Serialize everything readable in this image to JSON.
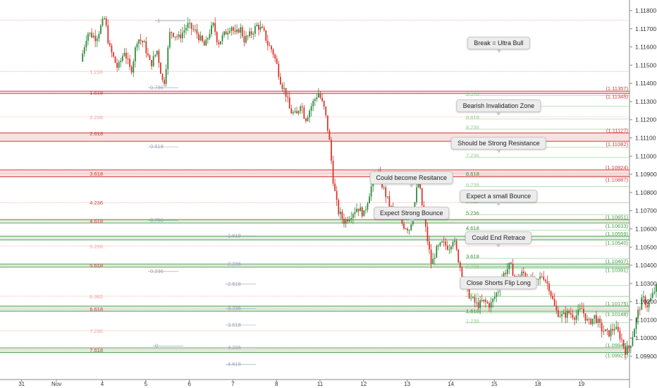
{
  "chart_data": {
    "type": "candlestick",
    "ylim": [
      1.0985,
      1.1188
    ],
    "y_ticks": [
      "1.11800",
      "1.11700",
      "1.11600",
      "1.11500",
      "1.11400",
      "1.11300",
      "1.11200",
      "1.11100",
      "1.11000",
      "1.10900",
      "1.10800",
      "1.10700",
      "1.10600",
      "1.10500",
      "1.10400",
      "1.10300",
      "1.10200",
      "1.10100",
      "1.10000",
      "1.09900"
    ],
    "x_ticks": [
      "31",
      "Nov",
      "4",
      "5",
      "6",
      "7",
      "8",
      "11",
      "12",
      "13",
      "14",
      "15",
      "18",
      "19"
    ],
    "key_levels": [
      {
        "left": "1.11357",
        "right": "1.11345",
        "price": 1.11351,
        "zone": "resistance"
      },
      {
        "left": "1.11127",
        "right": "1.11082",
        "price": 1.11105,
        "zone": "resistance"
      },
      {
        "left": "1.10924",
        "right": "1.10887",
        "price": 1.10905,
        "zone": "resistance"
      },
      {
        "left": "1.10651",
        "right": "1.10633",
        "price": 1.10642,
        "zone": "support"
      },
      {
        "left": "1.10559",
        "right": "1.10540",
        "price": 1.1055,
        "zone": "support"
      },
      {
        "left": "1.10407",
        "right": "1.10391",
        "price": 1.10399,
        "zone": "support"
      },
      {
        "left": "1.10175",
        "right": "1.10148",
        "price": 1.10161,
        "zone": "support"
      },
      {
        "left": "1.09946",
        "right": "1.09921",
        "price": 1.09934,
        "zone": "support"
      }
    ],
    "fib_down": [
      {
        "label": "0",
        "price": 1.11748
      },
      {
        "label": "1.236",
        "price": 1.11465
      },
      {
        "label": "1.618",
        "price": 1.1135
      },
      {
        "label": "2.236",
        "price": 1.11215
      },
      {
        "label": "2.618",
        "price": 1.11125
      },
      {
        "label": "3.618",
        "price": 1.10905
      },
      {
        "label": "4.236",
        "price": 1.10745
      },
      {
        "label": "4.618",
        "price": 1.10645
      },
      {
        "label": "5.236",
        "price": 1.10505
      },
      {
        "label": "5.618",
        "price": 1.104
      },
      {
        "label": "6.382",
        "price": 1.1023
      },
      {
        "label": "6.618",
        "price": 1.1016
      },
      {
        "label": "7.236",
        "price": 1.1004
      },
      {
        "label": "7.618",
        "price": 1.09935
      }
    ],
    "fib_grey": [
      {
        "label": "1",
        "price": 1.11748
      },
      {
        "label": "0.786",
        "price": 1.1138
      },
      {
        "label": "0.618",
        "price": 1.11055
      },
      {
        "label": "0.786",
        "price": 1.1065
      },
      {
        "label": "1.618",
        "price": 1.10565
      },
      {
        "label": "2.236",
        "price": 1.1041
      },
      {
        "label": "0.236",
        "price": 1.1037
      },
      {
        "label": "2.618",
        "price": 1.103
      },
      {
        "label": "3.236",
        "price": 1.10165
      },
      {
        "label": "3.618",
        "price": 1.10075
      },
      {
        "label": "0",
        "price": 1.0996
      },
      {
        "label": "4.236",
        "price": 1.0995
      },
      {
        "label": "4.618",
        "price": 1.0986
      }
    ],
    "fib_up": [
      {
        "label": "9.618",
        "price": 1.11345
      },
      {
        "label": "9.236",
        "price": 1.11285
      },
      {
        "label": "8.618",
        "price": 1.11215
      },
      {
        "label": "8.236",
        "price": 1.1116
      },
      {
        "label": "7.618",
        "price": 1.1106
      },
      {
        "label": "7.236",
        "price": 1.11005
      },
      {
        "label": "6.618",
        "price": 1.10905
      },
      {
        "label": "6.236",
        "price": 1.10845
      },
      {
        "label": "5.618",
        "price": 1.10755
      },
      {
        "label": "5.236",
        "price": 1.1069
      },
      {
        "label": "4.618",
        "price": 1.10605
      },
      {
        "label": "4.236",
        "price": 1.1055
      },
      {
        "label": "3.618",
        "price": 1.1045
      },
      {
        "label": "3.236",
        "price": 1.10395
      },
      {
        "label": "2.618",
        "price": 1.103
      },
      {
        "label": "2.236",
        "price": 1.1024
      },
      {
        "label": "1.618",
        "price": 1.1015
      },
      {
        "label": "1.236",
        "price": 1.10095
      }
    ],
    "callouts": [
      {
        "text": "Break = Ultra Bull",
        "price": 1.1156,
        "day": 13.1
      },
      {
        "text": "Bearish Invalidation Zone",
        "price": 1.11213,
        "day": 13.1
      },
      {
        "text": "Should be Strong Resistance",
        "price": 1.11008,
        "day": 13.1
      },
      {
        "text": "Could become Resitance",
        "price": 1.10818,
        "day": 11.1
      },
      {
        "text": "Expect a small Bounce",
        "price": 1.10718,
        "day": 13.1
      },
      {
        "text": "Expect Strong Bounce",
        "price": 1.10627,
        "day": 11.1
      },
      {
        "text": "Could End Retrace",
        "price": 1.1049,
        "day": 13.1
      },
      {
        "text": "Close Shorts Flip Long",
        "price": 1.1024,
        "day": 13.1
      }
    ],
    "path": [
      [
        -0.45,
        1.1152
      ],
      [
        -0.3,
        1.1168
      ],
      [
        -0.1,
        1.1165
      ],
      [
        0.1,
        1.1176
      ],
      [
        0.2,
        1.116
      ],
      [
        0.4,
        1.1148
      ],
      [
        0.55,
        1.1158
      ],
      [
        0.7,
        1.1146
      ],
      [
        0.85,
        1.1165
      ],
      [
        1.0,
        1.1162
      ],
      [
        1.15,
        1.115
      ],
      [
        1.3,
        1.1158
      ],
      [
        1.45,
        1.1138
      ],
      [
        1.6,
        1.1169
      ],
      [
        1.8,
        1.1165
      ],
      [
        2.0,
        1.1172
      ],
      [
        2.2,
        1.1168
      ],
      [
        2.4,
        1.116
      ],
      [
        2.5,
        1.1168
      ],
      [
        2.6,
        1.1172
      ],
      [
        2.7,
        1.1162
      ],
      [
        2.85,
        1.1167
      ],
      [
        3.0,
        1.1172
      ],
      [
        3.1,
        1.1166
      ],
      [
        3.2,
        1.1171
      ],
      [
        3.3,
        1.1164
      ],
      [
        3.45,
        1.1167
      ],
      [
        3.6,
        1.1172
      ],
      [
        3.75,
        1.1168
      ],
      [
        3.85,
        1.1161
      ],
      [
        3.95,
        1.1158
      ],
      [
        4.05,
        1.115
      ],
      [
        4.15,
        1.114
      ],
      [
        4.25,
        1.1135
      ],
      [
        4.35,
        1.1125
      ],
      [
        4.5,
        1.1122
      ],
      [
        4.6,
        1.113
      ],
      [
        4.7,
        1.112
      ],
      [
        4.85,
        1.1128
      ],
      [
        5.0,
        1.1135
      ],
      [
        5.05,
        1.1132
      ],
      [
        5.15,
        1.1125
      ],
      [
        5.25,
        1.111
      ],
      [
        5.35,
        1.1085
      ],
      [
        5.45,
        1.107
      ],
      [
        5.6,
        1.1064
      ],
      [
        5.75,
        1.1068
      ],
      [
        5.9,
        1.1072
      ],
      [
        6.05,
        1.1068
      ],
      [
        6.2,
        1.1082
      ],
      [
        6.35,
        1.1092
      ],
      [
        6.5,
        1.1082
      ],
      [
        6.65,
        1.1072
      ],
      [
        6.8,
        1.1068
      ],
      [
        6.95,
        1.1062
      ],
      [
        7.1,
        1.106
      ],
      [
        7.2,
        1.1072
      ],
      [
        7.3,
        1.1088
      ],
      [
        7.4,
        1.107
      ],
      [
        7.5,
        1.1055
      ],
      [
        7.6,
        1.104
      ],
      [
        7.7,
        1.1048
      ],
      [
        7.85,
        1.1052
      ],
      [
        8.0,
        1.105
      ],
      [
        8.1,
        1.1055
      ],
      [
        8.2,
        1.1045
      ],
      [
        8.35,
        1.103
      ],
      [
        8.5,
        1.1022
      ],
      [
        8.65,
        1.1018
      ],
      [
        8.8,
        1.102
      ],
      [
        8.95,
        1.1018
      ],
      [
        9.1,
        1.1025
      ],
      [
        9.25,
        1.1035
      ],
      [
        9.4,
        1.104
      ],
      [
        9.55,
        1.1032
      ],
      [
        9.7,
        1.1036
      ],
      [
        9.85,
        1.1032
      ],
      [
        10.0,
        1.103
      ],
      [
        10.15,
        1.1035
      ],
      [
        10.3,
        1.1028
      ],
      [
        10.45,
        1.1015
      ],
      [
        10.6,
        1.1012
      ],
      [
        10.75,
        1.1014
      ],
      [
        10.9,
        1.1012
      ],
      [
        11.05,
        1.1016
      ],
      [
        11.2,
        1.1008
      ],
      [
        11.35,
        1.1012
      ],
      [
        11.5,
        1.1005
      ],
      [
        11.65,
        1.1002
      ],
      [
        11.8,
        1.1006
      ],
      [
        11.95,
        1.1
      ],
      [
        12.05,
        1.0993
      ],
      [
        12.15,
        1.0995
      ],
      [
        12.25,
        1.1005
      ],
      [
        12.35,
        1.1015
      ],
      [
        12.45,
        1.1022
      ],
      [
        12.55,
        1.1018
      ],
      [
        12.65,
        1.1022
      ],
      [
        12.75,
        1.1028
      ],
      [
        12.85,
        1.1025
      ],
      [
        12.95,
        1.103
      ],
      [
        13.05,
        1.102
      ],
      [
        13.15,
        1.1035
      ],
      [
        13.3,
        1.1048
      ],
      [
        13.45,
        1.1055
      ],
      [
        13.6,
        1.106
      ],
      [
        13.75,
        1.1063
      ],
      [
        13.85,
        1.1058
      ],
      [
        13.95,
        1.1066
      ],
      [
        14.05,
        1.108
      ],
      [
        14.15,
        1.1083
      ],
      [
        14.25,
        1.1076
      ],
      [
        14.35,
        1.1072
      ]
    ]
  }
}
